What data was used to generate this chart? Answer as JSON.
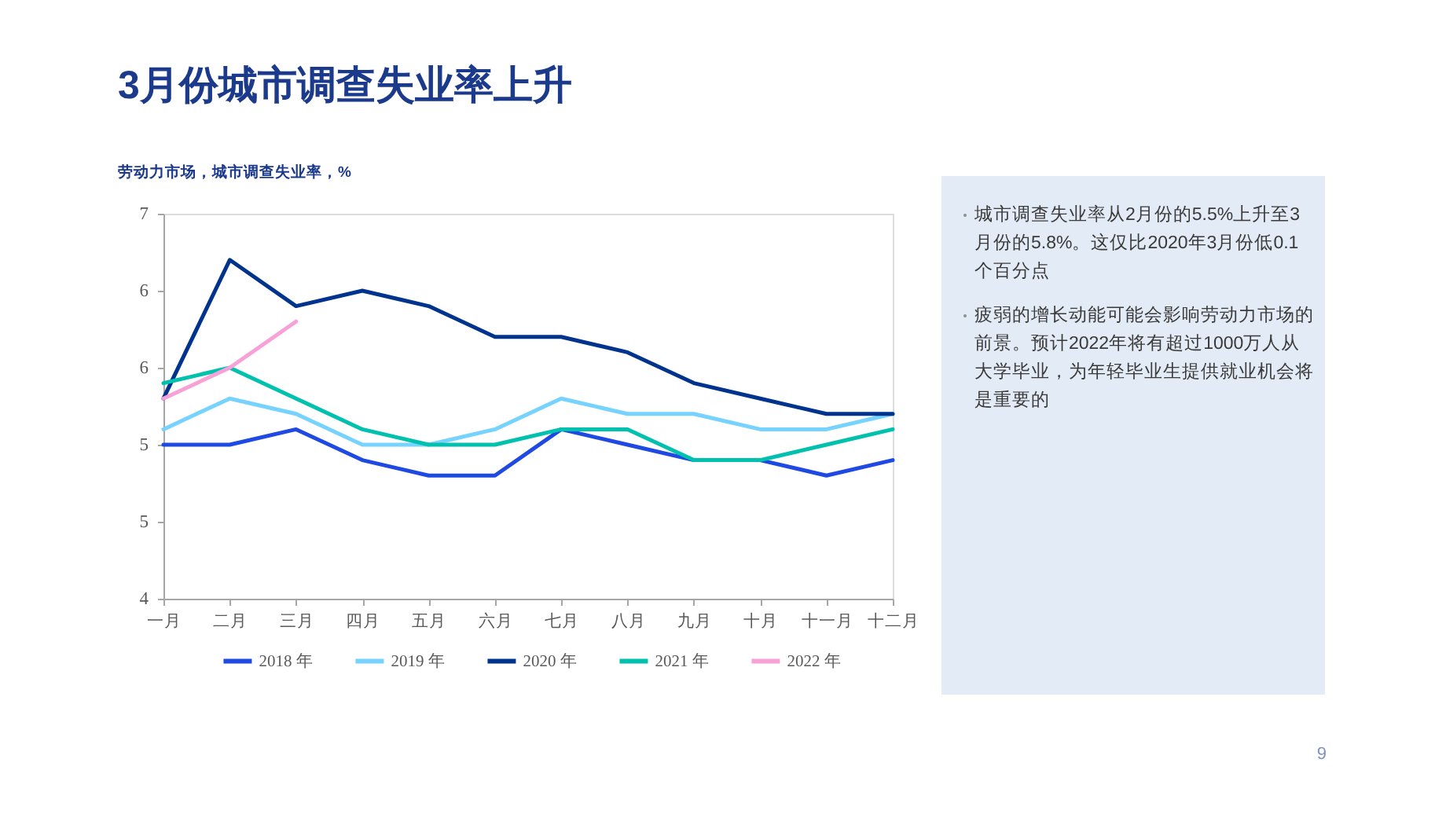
{
  "chart_data": [
    {
      "type": "line",
      "title": "3月份城市调查失业率上升",
      "subtitle": "劳动力市场，城市调查失业率，%",
      "categories": [
        "一月",
        "二月",
        "三月",
        "四月",
        "五月",
        "六月",
        "七月",
        "八月",
        "九月",
        "十月",
        "十一月",
        "十二月"
      ],
      "series": [
        {
          "name": "2018 年",
          "color": "#1e49e2",
          "values": [
            5.0,
            5.0,
            5.1,
            4.9,
            4.8,
            4.8,
            5.1,
            5.0,
            4.9,
            4.9,
            4.8,
            4.9
          ]
        },
        {
          "name": "2019 年",
          "color": "#76d2ff",
          "values": [
            5.1,
            5.3,
            5.2,
            5.0,
            5.0,
            5.1,
            5.3,
            5.2,
            5.2,
            5.1,
            5.1,
            5.2
          ]
        },
        {
          "name": "2020 年",
          "color": "#00338d",
          "values": [
            5.3,
            6.2,
            5.9,
            6.0,
            5.9,
            5.7,
            5.7,
            5.6,
            5.4,
            5.3,
            5.2,
            5.2
          ]
        },
        {
          "name": "2021 年",
          "color": "#00c0ae",
          "values": [
            5.4,
            5.5,
            5.3,
            5.1,
            5.0,
            5.0,
            5.1,
            5.1,
            4.9,
            4.9,
            5.0,
            5.1
          ]
        },
        {
          "name": "2022 年",
          "color": "#f7a1d7",
          "values": [
            5.3,
            5.5,
            5.8,
            null,
            null,
            null,
            null,
            null,
            null,
            null,
            null,
            null
          ]
        }
      ],
      "ylim": [
        4,
        6.5
      ],
      "yticks": [
        4,
        {
          "value": 4.5,
          "label": "5"
        },
        5,
        {
          "value": 5.5,
          "label": "6"
        },
        6,
        {
          "value": 6.5,
          "label": "7"
        }
      ],
      "grid": false,
      "legend": "bottom",
      "annotations": [
        "9"
      ]
    },
    {
      "type": "other",
      "annotations": [
        "城市调查失业率从2月份的5.5%上升至3月份的5.8%。这仅比2020年3月份低0.1个百分点",
        "疲弱的增长动能可能会影响劳动力市场的前景。预计2022年将有超过1000万人从大学毕业，为年轻毕业生提供就业机会将是重要的"
      ]
    }
  ]
}
